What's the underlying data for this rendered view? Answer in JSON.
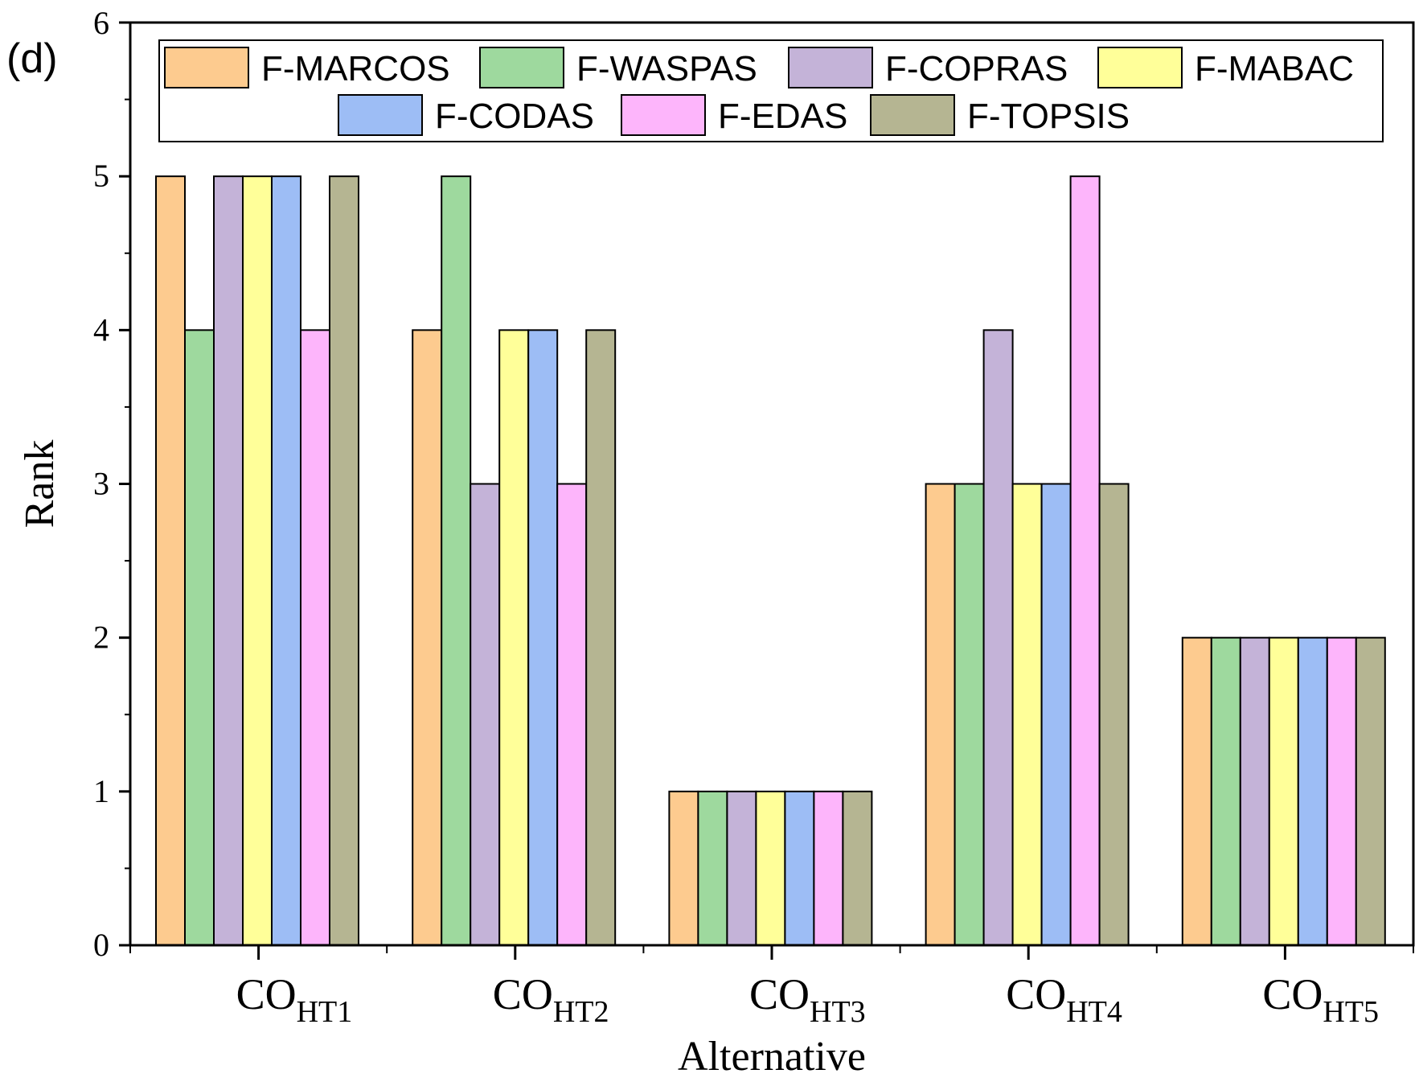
{
  "panel_label": "(d)",
  "chart_data": {
    "type": "bar",
    "title": "",
    "xlabel": "Alternative",
    "ylabel": "Rank",
    "ylim": [
      0,
      6
    ],
    "yticks": [
      "0",
      "1",
      "2",
      "3",
      "4",
      "5",
      "6"
    ],
    "categories": [
      {
        "main": "CO",
        "sub": "HT1"
      },
      {
        "main": "CO",
        "sub": "HT2"
      },
      {
        "main": "CO",
        "sub": "HT3"
      },
      {
        "main": "CO",
        "sub": "HT4"
      },
      {
        "main": "CO",
        "sub": "HT5"
      }
    ],
    "series": [
      {
        "name": "F-MARCOS",
        "color": "#FDCB8F",
        "values": [
          5,
          4,
          1,
          3,
          2
        ]
      },
      {
        "name": "F-WASPAS",
        "color": "#9ED99E",
        "values": [
          4,
          5,
          1,
          3,
          2
        ]
      },
      {
        "name": "F-COPRAS",
        "color": "#C4B3D8",
        "values": [
          5,
          3,
          1,
          4,
          2
        ]
      },
      {
        "name": "F-MABAC",
        "color": "#FFFF99",
        "values": [
          5,
          4,
          1,
          3,
          2
        ]
      },
      {
        "name": "F-CODAS",
        "color": "#9DBDF5",
        "values": [
          5,
          4,
          1,
          3,
          2
        ]
      },
      {
        "name": "F-EDAS",
        "color": "#FDB5FB",
        "values": [
          4,
          3,
          1,
          5,
          2
        ]
      },
      {
        "name": "F-TOPSIS",
        "color": "#B5B592",
        "values": [
          5,
          4,
          1,
          3,
          2
        ]
      }
    ],
    "legend_position": "top"
  }
}
